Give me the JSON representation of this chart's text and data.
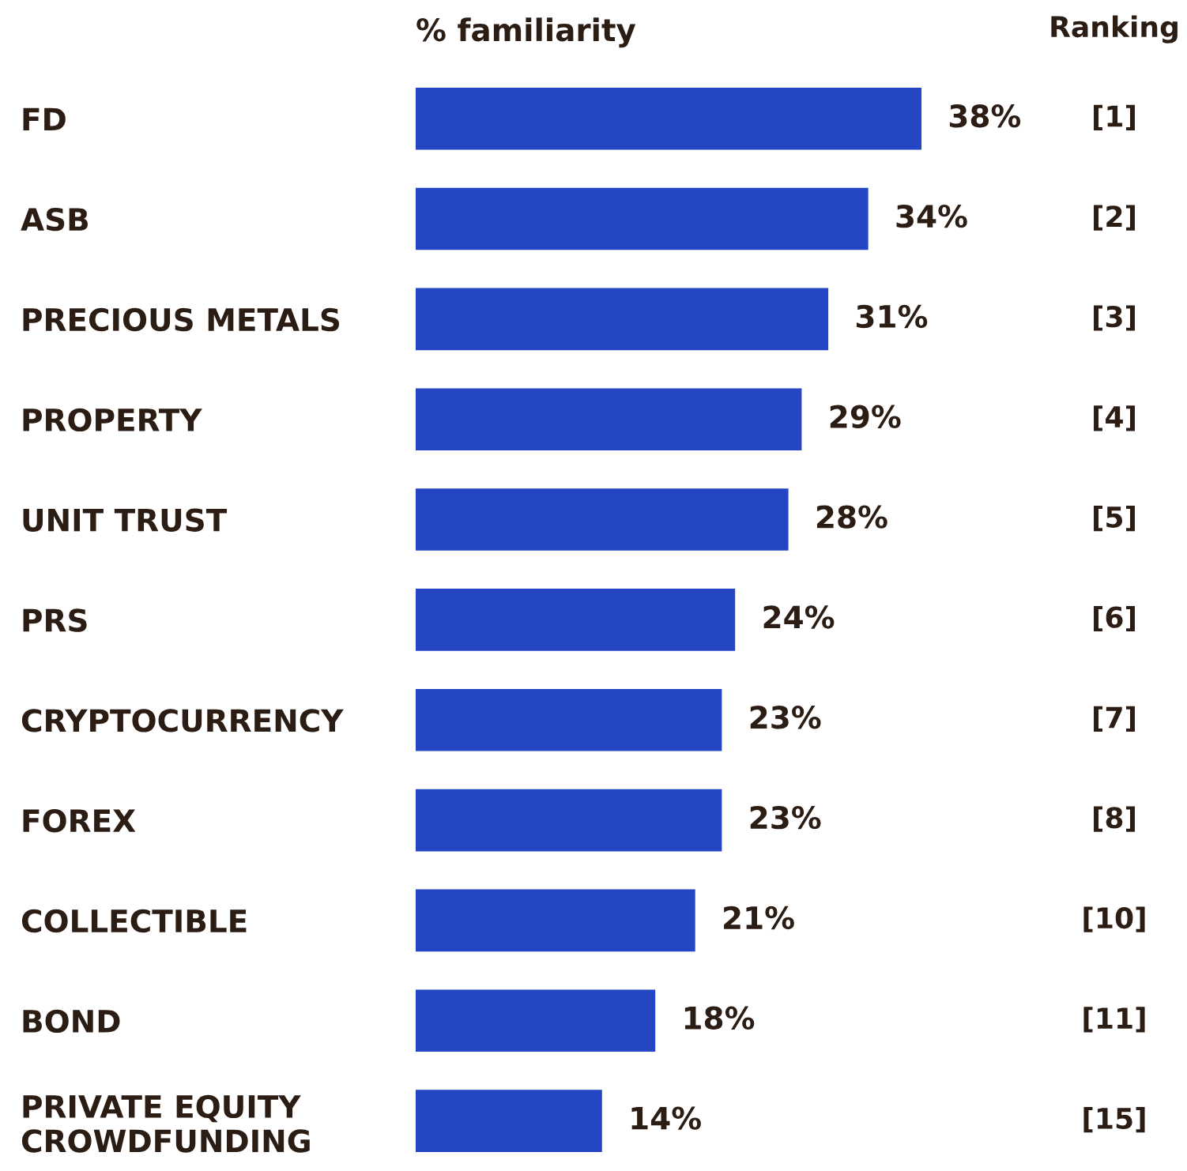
{
  "chart_data": {
    "type": "bar",
    "orientation": "horizontal",
    "xlabel": "% familiarity",
    "categories": [
      "FD",
      "ASB",
      "PRECIOUS METALS",
      "PROPERTY",
      "UNIT TRUST",
      "PRS",
      "CRYPTOCURRENCY",
      "FOREX",
      "COLLECTIBLE",
      "BOND",
      "PRIVATE EQUITY\nCROWDFUNDING"
    ],
    "values": [
      38,
      34,
      31,
      29,
      28,
      24,
      23,
      23,
      21,
      18,
      14
    ],
    "value_labels": [
      "38%",
      "34%",
      "31%",
      "29%",
      "28%",
      "24%",
      "23%",
      "23%",
      "21%",
      "18%",
      "14%"
    ],
    "color": "#2546c4",
    "annotations": [
      "Ranking",
      "[1]",
      "[2]",
      "[3]",
      "[4]",
      "[5]",
      "[6]",
      "[7]",
      "[8]",
      "[10]",
      "[11]",
      "[15]"
    ],
    "grid": false,
    "legend": false
  }
}
